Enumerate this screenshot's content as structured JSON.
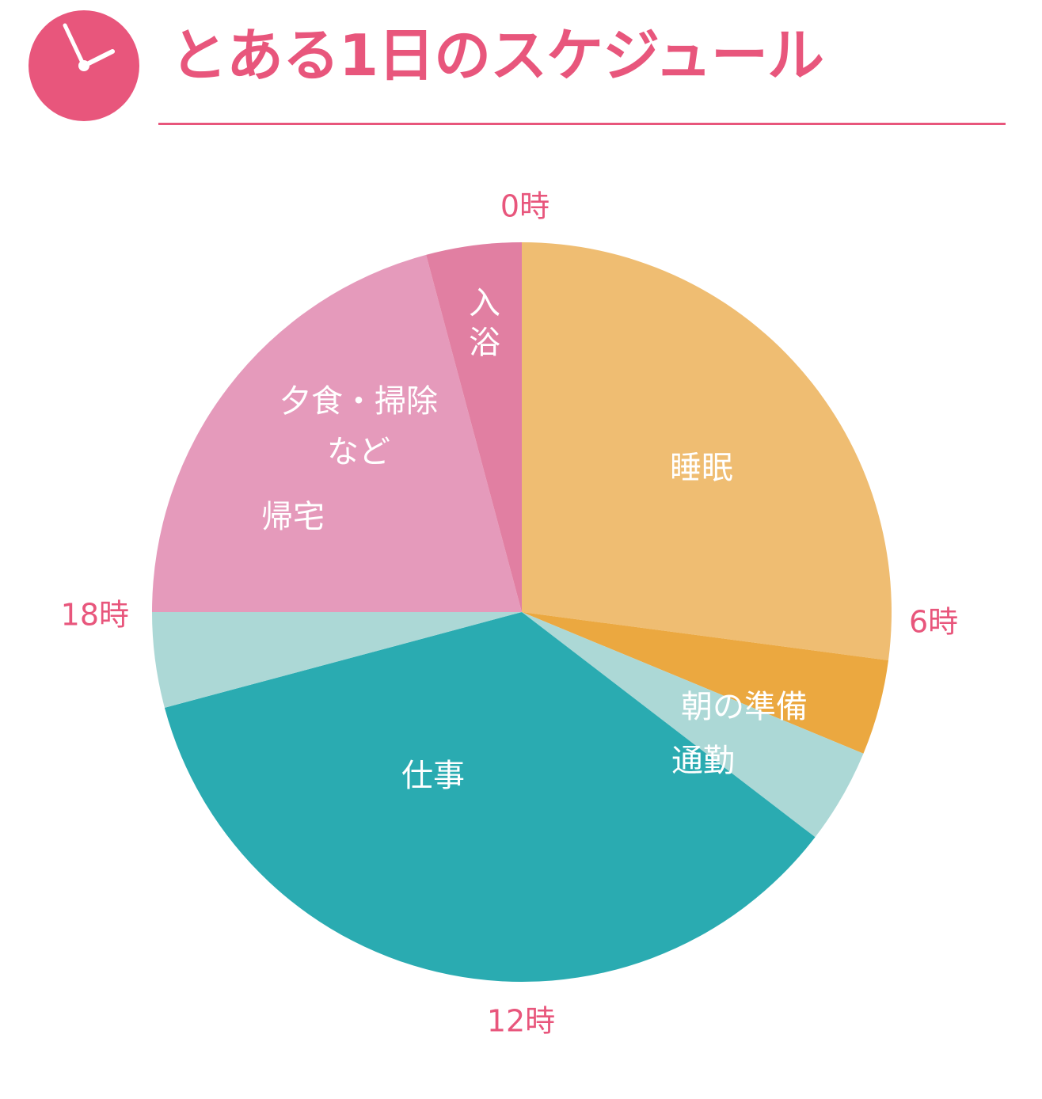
{
  "header": {
    "title": "とある1日のスケジュール",
    "icon": "clock-icon"
  },
  "colors": {
    "accent": "#e8567c",
    "text_white": "#ffffff"
  },
  "chart_data": {
    "type": "pie",
    "title": "とある1日のスケジュール",
    "unit": "hours",
    "start": "0時",
    "direction": "clockwise",
    "slices": [
      {
        "label": "睡眠",
        "label_lines": [
          "睡眠"
        ],
        "start": 0,
        "end": 6.5,
        "hours": 6.5,
        "color": "#efbd72"
      },
      {
        "label": "朝の準備",
        "label_lines": [
          "朝の準備"
        ],
        "start": 6.5,
        "end": 7.5,
        "hours": 1,
        "color": "#eba840"
      },
      {
        "label": "通勤",
        "label_lines": [
          "通勤"
        ],
        "start": 7.5,
        "end": 8.5,
        "hours": 1,
        "color": "#acd8d6"
      },
      {
        "label": "仕事",
        "label_lines": [
          "仕事"
        ],
        "start": 8.5,
        "end": 17,
        "hours": 8.5,
        "color": "#2aabb1"
      },
      {
        "label": "帰宅",
        "label_lines": [
          "帰宅"
        ],
        "start": 17,
        "end": 18,
        "hours": 1,
        "color": "#acd8d6"
      },
      {
        "label": "夕食・掃除など",
        "label_lines": [
          "夕食・掃除",
          "など"
        ],
        "start": 18,
        "end": 23,
        "hours": 5,
        "color": "#e59abb"
      },
      {
        "label": "入浴",
        "label_lines": [
          "入",
          "浴"
        ],
        "start": 23,
        "end": 24,
        "hours": 1,
        "color": "#e17fa2"
      }
    ],
    "hour_ticks": [
      {
        "label": "0時",
        "hour": 0
      },
      {
        "label": "6時",
        "hour": 6
      },
      {
        "label": "12時",
        "hour": 12
      },
      {
        "label": "18時",
        "hour": 18
      }
    ]
  }
}
